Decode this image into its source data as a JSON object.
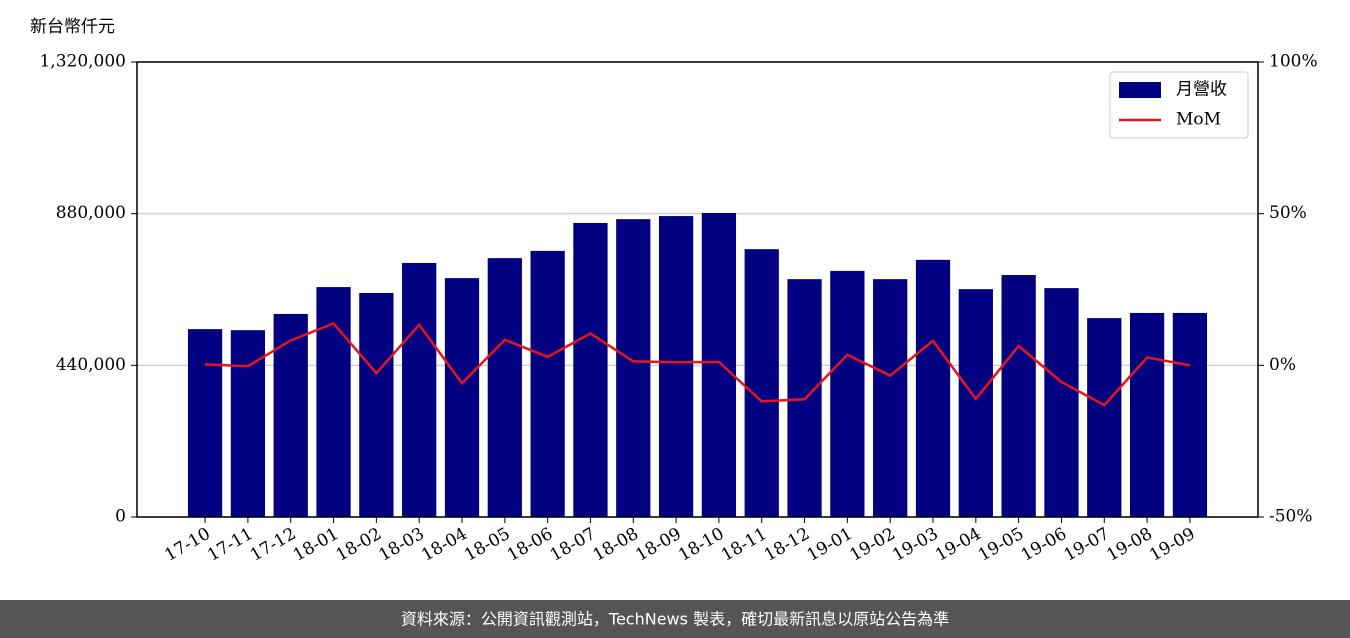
{
  "chart_data": {
    "type": "bar-line",
    "y_label": "新台幣仟元",
    "categories": [
      "17-10",
      "17-11",
      "17-12",
      "18-01",
      "18-02",
      "18-03",
      "18-04",
      "18-05",
      "18-06",
      "18-07",
      "18-08",
      "18-09",
      "18-10",
      "18-11",
      "18-12",
      "19-01",
      "19-02",
      "19-03",
      "19-04",
      "19-05",
      "19-06",
      "19-07",
      "19-08",
      "19-09"
    ],
    "series": [
      {
        "name": "月營收",
        "type": "bar",
        "color": "#000080",
        "values": [
          545000,
          542000,
          589000,
          667000,
          650000,
          737000,
          693000,
          751000,
          772000,
          853000,
          864000,
          873000,
          882000,
          777000,
          690000,
          714000,
          690000,
          746000,
          661000,
          702000,
          664000,
          577000,
          592000,
          592000
        ]
      },
      {
        "name": "MoM",
        "type": "line",
        "axis": "y2",
        "color": "#e8141b",
        "values": [
          0.3,
          -0.3,
          8.2,
          13.8,
          -2.6,
          13.4,
          -5.9,
          8.4,
          2.8,
          10.5,
          1.3,
          1.0,
          1.1,
          -11.9,
          -11.2,
          3.5,
          -3.4,
          8.1,
          -11.1,
          6.4,
          -5.5,
          -13.1,
          2.6,
          0
        ]
      }
    ],
    "ylim": [
      0,
      1320000
    ],
    "yticks": [
      0,
      {
        "value": 440000,
        "label": "440,000"
      },
      {
        "value": 880000,
        "label": "880,000"
      },
      {
        "value": 1320000,
        "label": "1,320,000"
      }
    ],
    "y2lim": [
      -50,
      100
    ],
    "y2ticks": [
      {
        "value": -50,
        "label": "-50%"
      },
      {
        "value": 0,
        "label": "0%"
      },
      {
        "value": 50,
        "label": "50%"
      },
      {
        "value": 100,
        "label": "100%"
      }
    ],
    "grid": true,
    "legend": "upper right"
  },
  "footer": "資料來源：公開資訊觀測站，TechNews 製表，確切最新訊息以原站公告為準"
}
